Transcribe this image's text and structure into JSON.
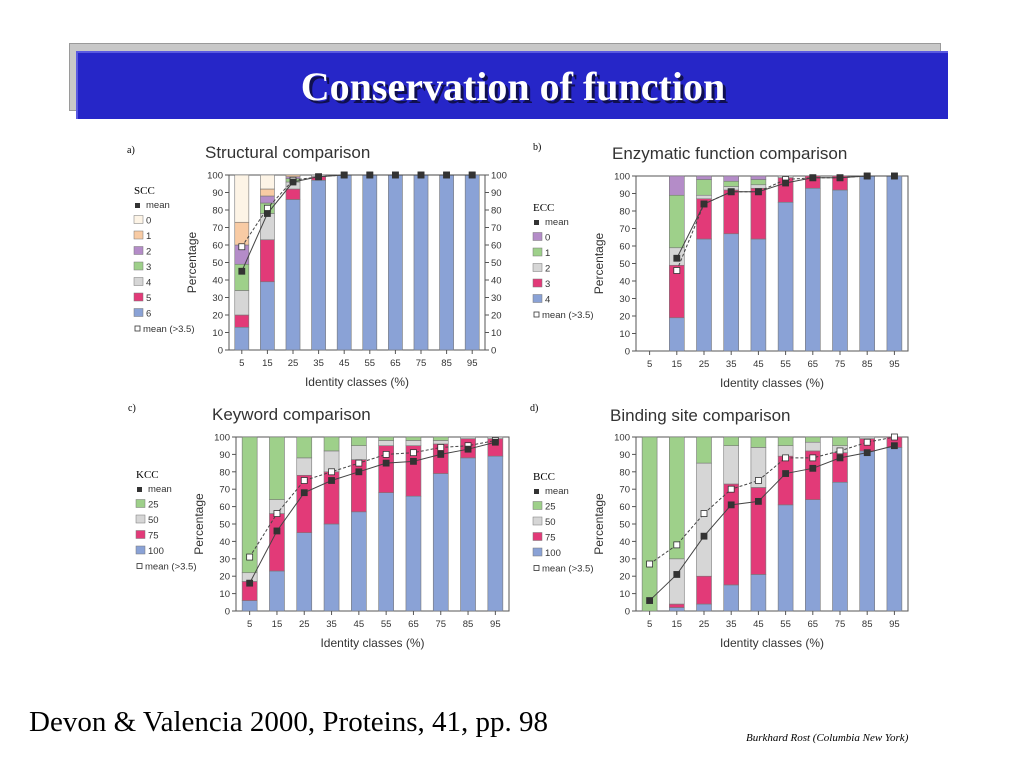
{
  "slide": {
    "title": "Conservation of function",
    "citation": "Devon & Valencia 2000, Proteins, 41, pp. 98",
    "credit": "Burkhard Rost (Columbia New York)"
  },
  "colors": {
    "title_bar": "#2626c8",
    "blue": "#8aa2d6",
    "pink": "#e23a78",
    "gray": "#d6d6d6",
    "green": "#9ed08a",
    "purple": "#b48cc8",
    "peach": "#f8cba4",
    "cream": "#fdf4e6"
  },
  "chart_data": [
    {
      "panel": "a)",
      "type": "bar",
      "stacked": true,
      "title": "Structural comparison",
      "xlabel": "Identity classes (%)",
      "ylabel": "Percentage",
      "ylim": [
        0,
        100
      ],
      "yticks": [
        "0",
        "10",
        "20",
        "30",
        "40",
        "50",
        "60",
        "70",
        "80",
        "90",
        "100"
      ],
      "right_axis": true,
      "categories": [
        "5",
        "15",
        "25",
        "35",
        "45",
        "55",
        "65",
        "75",
        "85",
        "95"
      ],
      "legend_title": "SCC",
      "legend_position": "left",
      "series": [
        {
          "name": "6",
          "color": "blue",
          "values": [
            13,
            39,
            86,
            97,
            100,
            100,
            100,
            100,
            100,
            100
          ]
        },
        {
          "name": "5",
          "color": "pink",
          "values": [
            7,
            24,
            6,
            2,
            0,
            0,
            0,
            0,
            0,
            0
          ]
        },
        {
          "name": "4",
          "color": "gray",
          "values": [
            14,
            15,
            4,
            1,
            0,
            0,
            0,
            0,
            0,
            0
          ]
        },
        {
          "name": "3",
          "color": "green",
          "values": [
            15,
            6,
            2,
            0,
            0,
            0,
            0,
            0,
            0,
            0
          ]
        },
        {
          "name": "2",
          "color": "purple",
          "values": [
            11,
            4,
            1,
            0,
            0,
            0,
            0,
            0,
            0,
            0
          ]
        },
        {
          "name": "1",
          "color": "peach",
          "values": [
            13,
            4,
            1,
            0,
            0,
            0,
            0,
            0,
            0,
            0
          ]
        },
        {
          "name": "0",
          "color": "cream",
          "values": [
            27,
            8,
            0,
            0,
            0,
            0,
            0,
            0,
            0,
            0
          ]
        }
      ],
      "mean_label": "mean",
      "mean_values": [
        45,
        78,
        96,
        99,
        100,
        100,
        100,
        100,
        100,
        100
      ],
      "mean35_label": "mean (>3.5)",
      "mean35_values": [
        59,
        81,
        97,
        99,
        100,
        100,
        100,
        100,
        100,
        100
      ]
    },
    {
      "panel": "b)",
      "type": "bar",
      "stacked": true,
      "title": "Enzymatic function comparison",
      "xlabel": "Identity classes (%)",
      "ylabel": "Percentage",
      "ylim": [
        0,
        100
      ],
      "yticks": [
        "0",
        "10",
        "20",
        "30",
        "40",
        "50",
        "60",
        "70",
        "80",
        "90",
        "100"
      ],
      "right_axis": false,
      "categories": [
        "5",
        "15",
        "25",
        "35",
        "45",
        "55",
        "65",
        "75",
        "85",
        "95"
      ],
      "legend_title": "ECC",
      "legend_position": "left",
      "series": [
        {
          "name": "4",
          "color": "blue",
          "values": [
            0,
            19,
            64,
            67,
            64,
            85,
            93,
            92,
            100,
            100
          ]
        },
        {
          "name": "3",
          "color": "pink",
          "values": [
            0,
            30,
            23,
            25,
            29,
            14,
            7,
            8,
            0,
            0
          ]
        },
        {
          "name": "2",
          "color": "gray",
          "values": [
            0,
            10,
            2,
            2,
            2,
            1,
            0,
            0,
            0,
            0
          ]
        },
        {
          "name": "1",
          "color": "green",
          "values": [
            0,
            30,
            9,
            3,
            3,
            0,
            0,
            0,
            0,
            0
          ]
        },
        {
          "name": "0",
          "color": "purple",
          "values": [
            0,
            11,
            2,
            3,
            2,
            0,
            0,
            0,
            0,
            0
          ]
        }
      ],
      "mean_label": "mean",
      "mean_values": [
        null,
        53,
        84,
        91,
        91,
        96,
        99,
        99,
        100,
        100
      ],
      "mean35_label": "mean (>3.5)",
      "mean35_values": [
        null,
        46,
        84,
        91,
        91,
        98,
        99,
        99,
        100,
        100
      ]
    },
    {
      "panel": "c)",
      "type": "bar",
      "stacked": true,
      "title": "Keyword comparison",
      "xlabel": "Identity classes (%)",
      "ylabel": "Percentage",
      "ylim": [
        0,
        100
      ],
      "yticks": [
        "0",
        "10",
        "20",
        "30",
        "40",
        "50",
        "60",
        "70",
        "80",
        "90",
        "100"
      ],
      "right_axis": false,
      "categories": [
        "5",
        "15",
        "25",
        "35",
        "45",
        "55",
        "65",
        "75",
        "85",
        "95"
      ],
      "legend_title": "KCC",
      "legend_position": "left",
      "series": [
        {
          "name": "100",
          "color": "blue",
          "values": [
            6,
            23,
            45,
            50,
            57,
            68,
            66,
            79,
            88,
            89
          ]
        },
        {
          "name": "75",
          "color": "pink",
          "values": [
            11,
            33,
            33,
            30,
            30,
            27,
            29,
            17,
            11,
            10
          ]
        },
        {
          "name": "50",
          "color": "gray",
          "values": [
            5,
            8,
            10,
            12,
            8,
            3,
            3,
            2,
            1,
            1
          ]
        },
        {
          "name": "25",
          "color": "green",
          "values": [
            78,
            36,
            12,
            8,
            5,
            2,
            2,
            2,
            0,
            0
          ]
        }
      ],
      "mean_label": "mean",
      "mean_values": [
        16,
        46,
        68,
        75,
        80,
        85,
        86,
        90,
        93,
        97
      ],
      "mean35_label": "mean (>3.5)",
      "mean35_values": [
        31,
        56,
        75,
        80,
        85,
        90,
        91,
        94,
        95,
        98
      ]
    },
    {
      "panel": "d)",
      "type": "bar",
      "stacked": true,
      "title": "Binding site comparison",
      "xlabel": "Identity classes (%)",
      "ylabel": "Percentage",
      "ylim": [
        0,
        100
      ],
      "yticks": [
        "0",
        "10",
        "20",
        "30",
        "40",
        "50",
        "60",
        "70",
        "80",
        "90",
        "100"
      ],
      "right_axis": false,
      "categories": [
        "5",
        "15",
        "25",
        "35",
        "45",
        "55",
        "65",
        "75",
        "85",
        "95"
      ],
      "legend_title": "BCC",
      "legend_position": "left",
      "series": [
        {
          "name": "100",
          "color": "blue",
          "values": [
            0,
            2,
            4,
            15,
            21,
            61,
            64,
            74,
            92,
            94
          ]
        },
        {
          "name": "75",
          "color": "pink",
          "values": [
            0,
            2,
            16,
            58,
            50,
            28,
            28,
            17,
            7,
            6
          ]
        },
        {
          "name": "50",
          "color": "gray",
          "values": [
            0,
            26,
            65,
            22,
            23,
            6,
            5,
            4,
            1,
            0
          ]
        },
        {
          "name": "25",
          "color": "green",
          "values": [
            100,
            70,
            15,
            5,
            6,
            5,
            3,
            5,
            0,
            0
          ]
        }
      ],
      "mean_label": "mean",
      "mean_values": [
        6,
        21,
        43,
        61,
        63,
        79,
        82,
        88,
        91,
        95
      ],
      "mean35_label": "mean (>3.5)",
      "mean35_values": [
        27,
        38,
        56,
        70,
        75,
        88,
        88,
        92,
        97,
        100
      ]
    }
  ]
}
